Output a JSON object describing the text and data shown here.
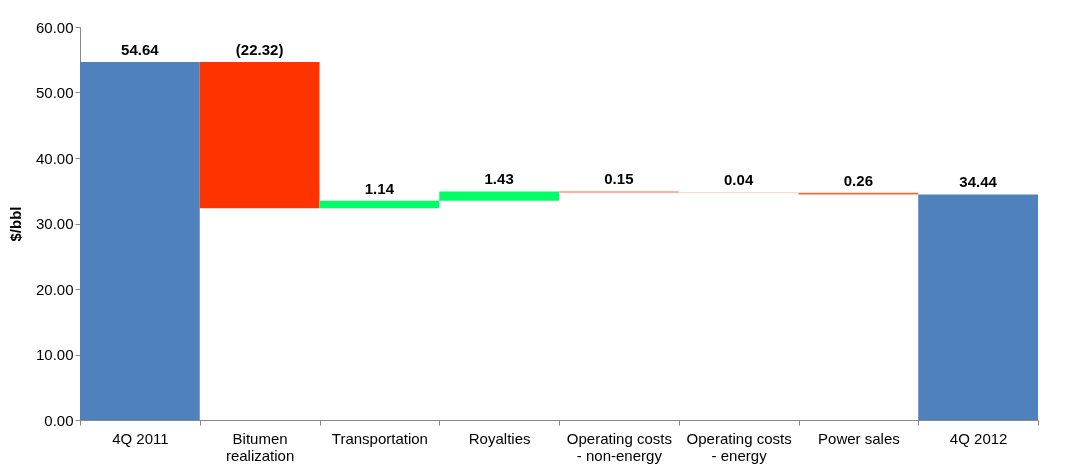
{
  "chart_data": {
    "type": "bar",
    "ylabel": "$/bbl",
    "categories": [
      "4Q 2011",
      "Bitumen realization",
      "Transportation",
      "Royalties",
      "Operating costs - non-energy",
      "Operating costs - energy",
      "Power sales",
      "4Q 2012"
    ],
    "values": [
      54.64,
      -22.32,
      1.14,
      1.43,
      -0.15,
      -0.04,
      -0.26,
      34.44
    ],
    "base": [
      0,
      54.64,
      32.32,
      33.46,
      34.89,
      34.74,
      34.7,
      0
    ],
    "colors": [
      "#4f81bd",
      "#ff3300",
      "#00ff66",
      "#00ff66",
      "#ff6633",
      "#ff6633",
      "#ff6633",
      "#4f81bd"
    ],
    "value_labels": [
      "54.64",
      "(22.32)",
      "1.14",
      "1.43",
      "0.15",
      "0.04",
      "0.26",
      "34.44"
    ],
    "ylim": [
      0,
      60
    ],
    "yticks": [
      {
        "value": 0,
        "label": "0.00"
      },
      {
        "value": 10,
        "label": "10.00"
      },
      {
        "value": 20,
        "label": "20.00"
      },
      {
        "value": 30,
        "label": "30.00"
      },
      {
        "value": 40,
        "label": "40.00"
      },
      {
        "value": 50,
        "label": "50.00"
      },
      {
        "value": 60,
        "label": "60.00"
      }
    ],
    "grid": false
  }
}
